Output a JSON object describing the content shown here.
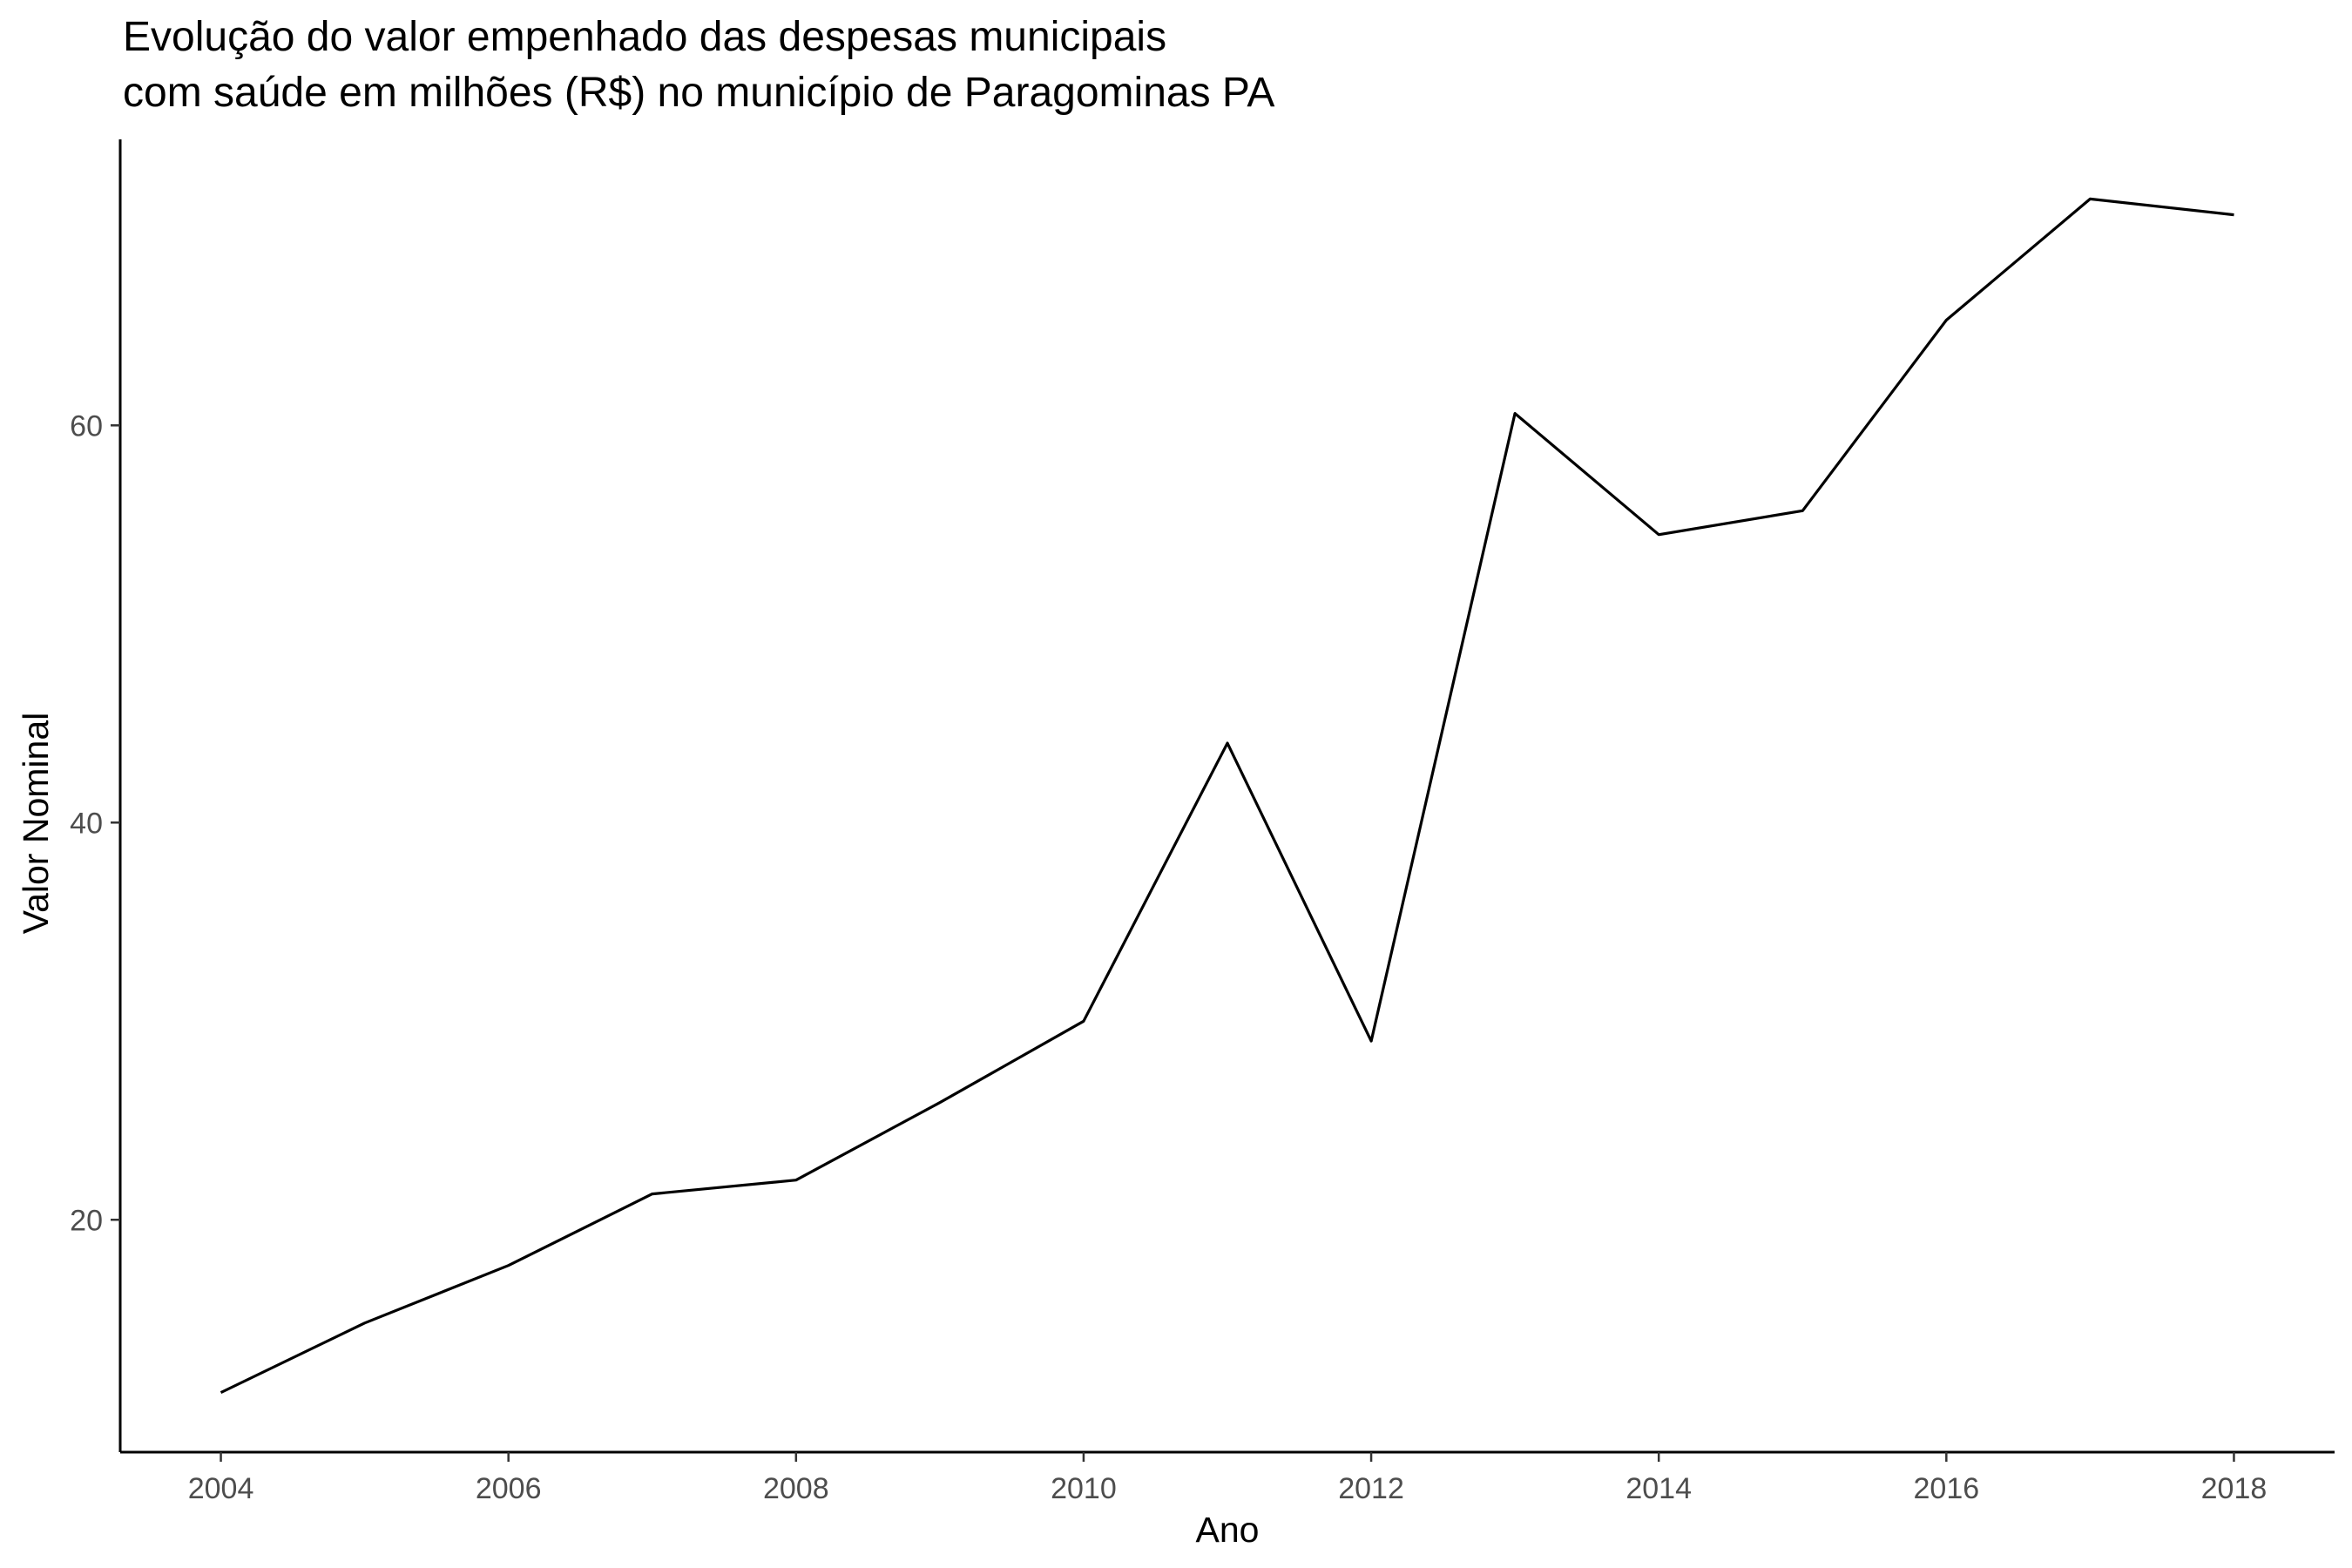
{
  "chart_data": {
    "type": "line",
    "title_lines": [
      "Evolução do valor empenhado das despesas municipais",
      "com saúde em milhões (R$) no município de Paragominas PA"
    ],
    "xlabel": "Ano",
    "ylabel": "Valor Nominal",
    "x_ticks": [
      2004,
      2006,
      2008,
      2010,
      2012,
      2014,
      2016,
      2018
    ],
    "y_ticks": [
      20,
      40,
      60
    ],
    "xlim": [
      2003.3,
      2018.7
    ],
    "ylim": [
      8.3,
      74.4
    ],
    "grid": false,
    "line_color": "#000000",
    "series": [
      {
        "x": [
          2004,
          2005,
          2006,
          2007,
          2008,
          2009,
          2010,
          2011,
          2012,
          2013,
          2014,
          2015,
          2016,
          2017,
          2018
        ],
        "values": [
          11.3,
          14.8,
          17.7,
          21.3,
          22.0,
          25.9,
          30.0,
          44.0,
          29.0,
          60.6,
          54.5,
          55.7,
          65.3,
          71.4,
          70.6
        ]
      }
    ]
  }
}
